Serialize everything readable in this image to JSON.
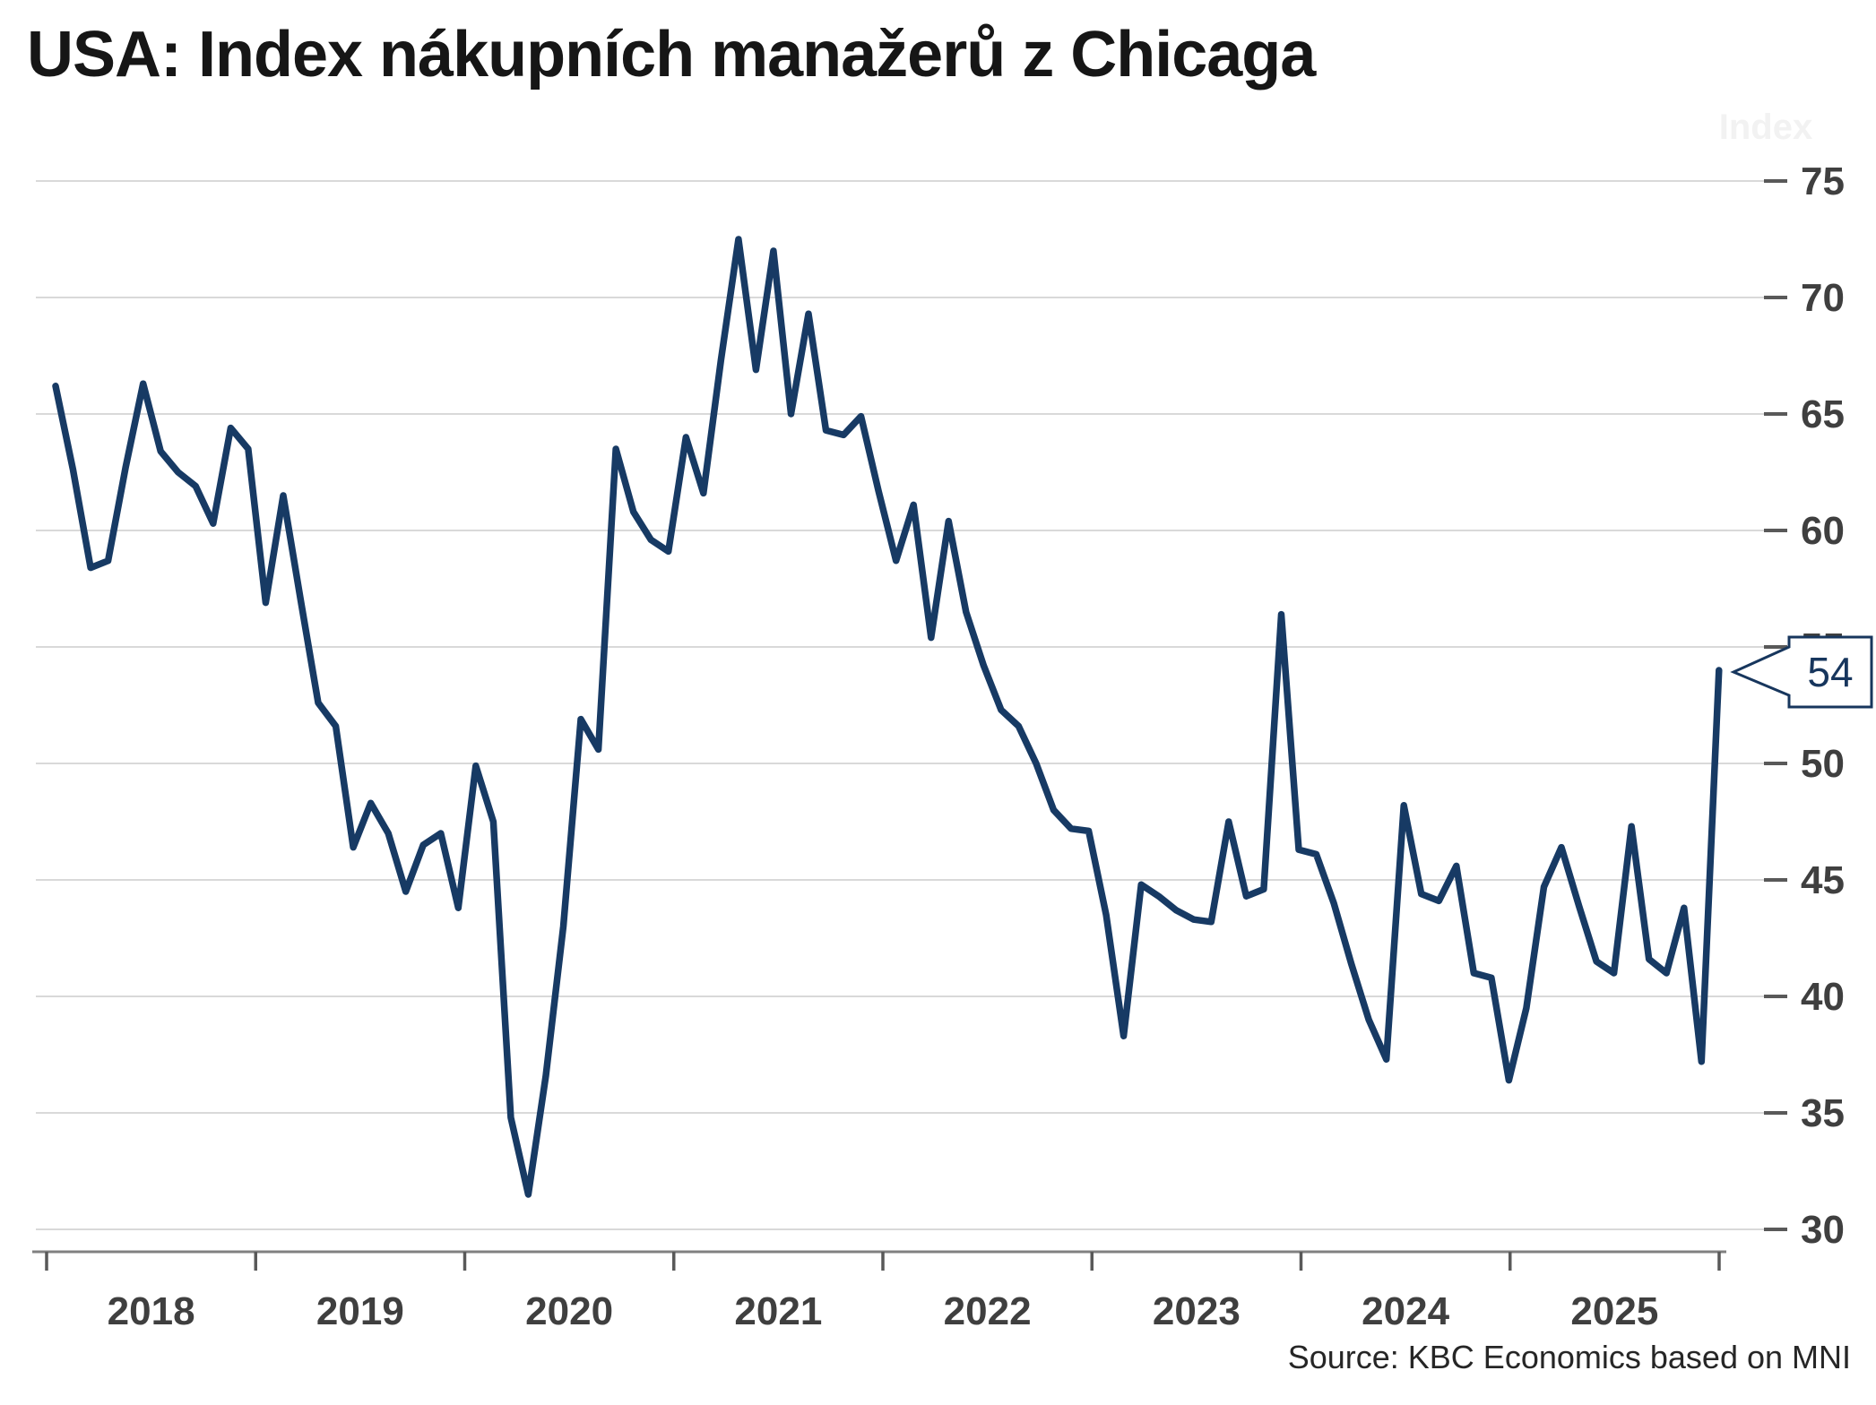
{
  "header": {
    "title": "USA: Index nákupních manažerů z Chicaga"
  },
  "footer": {
    "source": "Source: KBC Economics based on MNI"
  },
  "colors": {
    "line": "#173a64",
    "grid": "#d9d9d9",
    "axis": "#808080",
    "tick": "#595959",
    "label": "#3f3f3f",
    "callout": "#17365d",
    "background": "#ffffff"
  },
  "callout": {
    "value": "54"
  },
  "chart_data": {
    "type": "line",
    "title": "USA: Index nákupních manažerů z Chicaga",
    "unit_label": "Index",
    "legend": false,
    "grid": "horizontal",
    "x_tick_years": [
      2018,
      2019,
      2020,
      2021,
      2022,
      2023,
      2024,
      2025
    ],
    "y_ticks": [
      75,
      70,
      65,
      60,
      55,
      50,
      45,
      40,
      35,
      30
    ],
    "ylim": [
      29,
      77.5
    ],
    "frequency": "monthly",
    "start": "2018-01",
    "end": "2025-12",
    "last_value_label": "54",
    "values": [
      66.2,
      62.6,
      58.4,
      58.7,
      62.7,
      66.3,
      63.4,
      62.5,
      61.9,
      60.3,
      64.4,
      63.5,
      56.9,
      61.5,
      57.0,
      52.6,
      51.6,
      46.4,
      48.3,
      47.0,
      44.5,
      46.5,
      47.0,
      43.8,
      49.9,
      47.5,
      34.8,
      31.5,
      36.6,
      43.0,
      51.9,
      50.6,
      63.5,
      60.8,
      59.6,
      59.1,
      64.0,
      61.6,
      67.3,
      72.5,
      66.9,
      72.0,
      65.0,
      69.3,
      64.3,
      64.1,
      64.9,
      61.7,
      58.7,
      61.1,
      55.4,
      60.4,
      56.5,
      54.2,
      52.3,
      51.6,
      50.0,
      48.0,
      47.2,
      47.1,
      43.5,
      38.3,
      44.8,
      44.3,
      43.7,
      43.3,
      43.2,
      47.5,
      44.3,
      44.6,
      56.4,
      46.3,
      46.1,
      44.0,
      41.4,
      39.0,
      37.3,
      48.2,
      44.4,
      44.1,
      45.6,
      41.0,
      40.8,
      36.4,
      39.5,
      44.7,
      46.4,
      43.9,
      41.5,
      41.0,
      47.3,
      41.6,
      41.0,
      43.8,
      37.2,
      54.0
    ]
  }
}
